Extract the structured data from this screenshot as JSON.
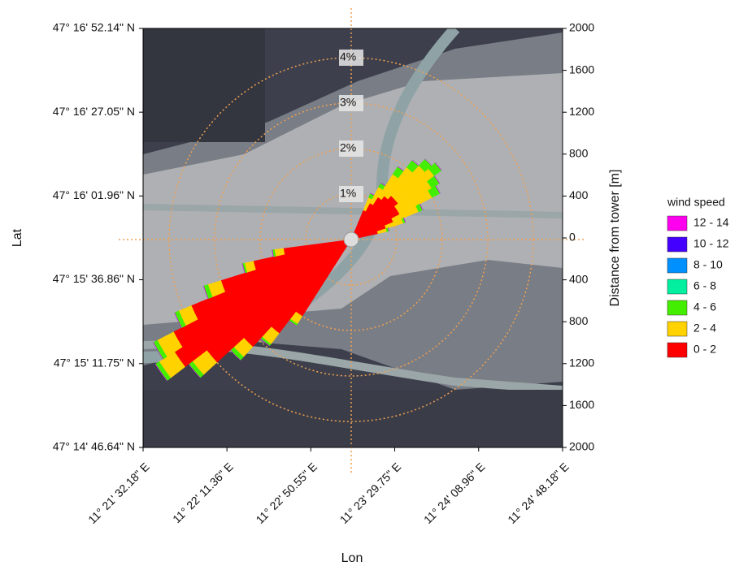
{
  "chart_data": {
    "type": "windrose",
    "x_label": "Lon",
    "y_label": "Lat",
    "y2_label": "Distance from tower [m]",
    "legend_title": "wind speed",
    "xlim": [
      11.358939,
      11.413383
    ],
    "xticks": [
      {
        "value": 11.358939,
        "label": "11° 21' 32.18\" E"
      },
      {
        "value": 11.369822,
        "label": "11° 22' 11.36\" E"
      },
      {
        "value": 11.380708,
        "label": "11° 22' 50.55\" E"
      },
      {
        "value": 11.391597,
        "label": "11° 23' 29.75\" E"
      },
      {
        "value": 11.402489,
        "label": "11° 24' 08.96\" E"
      },
      {
        "value": 11.413383,
        "label": "11° 24' 48.18\" E"
      }
    ],
    "ylim": [
      47.246289,
      47.28115
    ],
    "yticks": [
      {
        "value": 47.28115,
        "label": "47° 16' 52.14\" N"
      },
      {
        "value": 47.274181,
        "label": "47° 16' 27.05\" N"
      },
      {
        "value": 47.267211,
        "label": "47° 16' 01.96\" N"
      },
      {
        "value": 47.260239,
        "label": "47° 15' 36.86\" N"
      },
      {
        "value": 47.253264,
        "label": "47° 15' 11.75\" N"
      },
      {
        "value": 47.246289,
        "label": "47° 14' 46.64\" N"
      }
    ],
    "y2lim": [
      -2000,
      2000
    ],
    "y2ticks": [
      2000,
      1600,
      1200,
      800,
      400,
      0,
      {
        "value": -400,
        "label": "400"
      },
      {
        "value": -800,
        "label": "800"
      },
      {
        "value": -1200,
        "label": "1200"
      },
      {
        "value": -1600,
        "label": "1600"
      },
      {
        "value": -2000,
        "label": "2000"
      }
    ],
    "rlim": [
      0,
      5
    ],
    "rticks": [
      {
        "value": 1,
        "label": "1%"
      },
      {
        "value": 2,
        "label": "2%"
      },
      {
        "value": 3,
        "label": "3%"
      },
      {
        "value": 4,
        "label": "4%"
      }
    ],
    "directions": [
      25,
      30,
      35,
      40,
      45,
      50,
      55,
      60,
      65,
      70,
      75,
      215,
      220,
      225,
      230,
      235,
      240,
      245,
      250,
      255,
      260
    ],
    "series": [
      {
        "name": "0 - 2",
        "color": "#ff0000",
        "values": [
          0.7,
          0.9,
          1.1,
          1.2,
          1.3,
          1.3,
          1.2,
          1.2,
          1.0,
          0.8,
          0.6,
          2.0,
          2.6,
          3.2,
          4.0,
          4.6,
          4.4,
          3.8,
          3.0,
          2.2,
          1.5
        ]
      },
      {
        "name": "2 - 4",
        "color": "#ffd200",
        "values": [
          0.3,
          0.4,
          0.6,
          0.8,
          0.9,
          1.0,
          0.9,
          0.8,
          0.6,
          0.4,
          0.2,
          0.2,
          0.3,
          0.3,
          0.4,
          0.4,
          0.4,
          0.3,
          0.3,
          0.2,
          0.2
        ]
      },
      {
        "name": "4 - 6",
        "color": "#44ee00",
        "values": [
          0.1,
          0.1,
          0.2,
          0.2,
          0.2,
          0.2,
          0.2,
          0.2,
          0.1,
          0.05,
          0.05,
          0.05,
          0.05,
          0.1,
          0.1,
          0.1,
          0.1,
          0.1,
          0.1,
          0.05,
          0.05
        ]
      },
      {
        "name": "6 - 8",
        "color": "#00f0a0",
        "values": [
          0,
          0,
          0,
          0,
          0,
          0,
          0,
          0,
          0,
          0,
          0,
          0,
          0,
          0,
          0,
          0,
          0,
          0,
          0,
          0,
          0
        ]
      },
      {
        "name": "8 - 10",
        "color": "#0090ff",
        "values": [
          0,
          0,
          0,
          0,
          0,
          0,
          0,
          0,
          0,
          0,
          0,
          0,
          0,
          0,
          0,
          0,
          0,
          0,
          0,
          0,
          0
        ]
      },
      {
        "name": "10 - 12",
        "color": "#4400ff",
        "values": [
          0,
          0,
          0,
          0,
          0,
          0,
          0,
          0,
          0,
          0,
          0,
          0,
          0,
          0,
          0,
          0,
          0,
          0,
          0,
          0,
          0
        ]
      },
      {
        "name": "12 - 14",
        "color": "#ff00ee",
        "values": [
          0,
          0,
          0,
          0,
          0,
          0,
          0,
          0,
          0,
          0,
          0,
          0,
          0,
          0,
          0,
          0,
          0,
          0,
          0,
          0,
          0
        ]
      }
    ]
  }
}
